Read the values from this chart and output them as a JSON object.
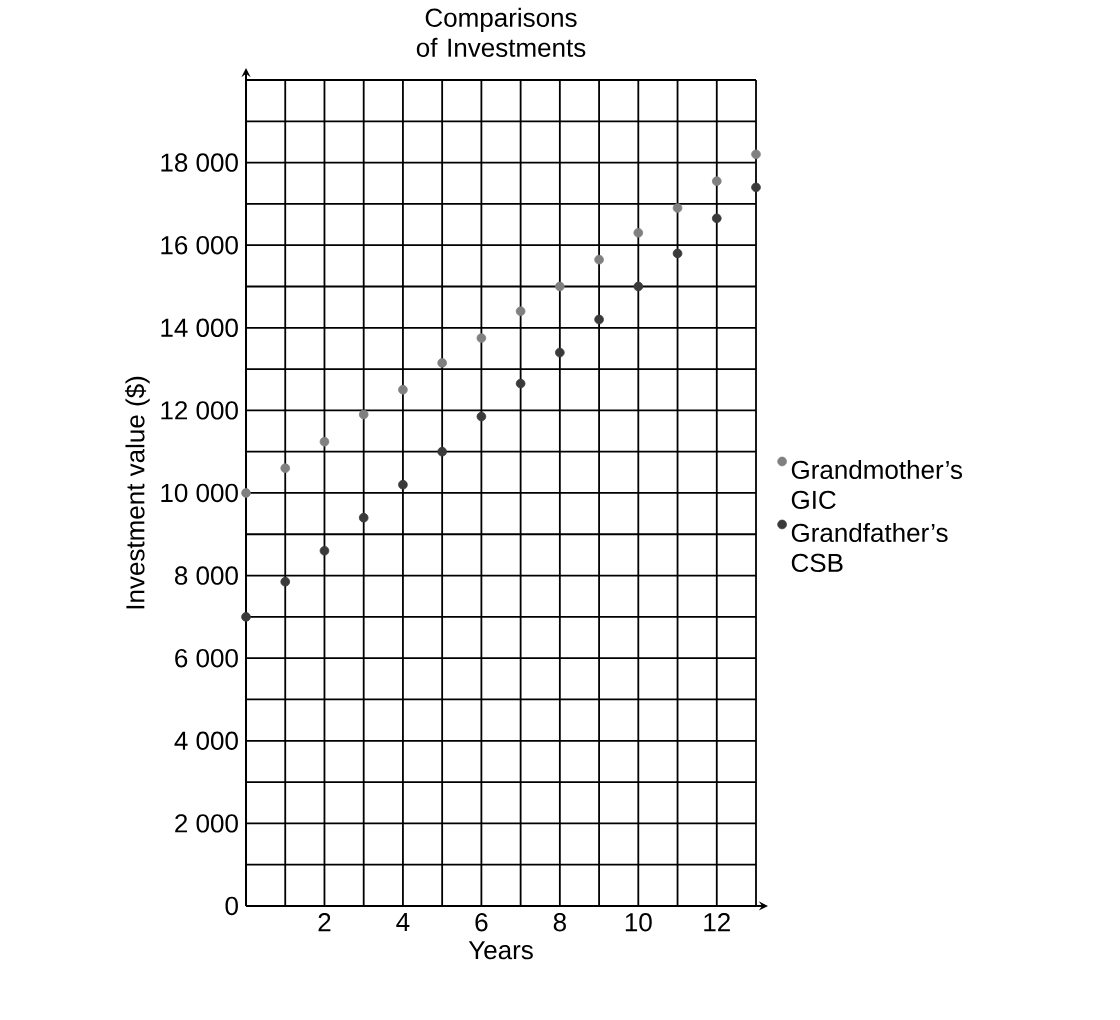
{
  "chart_data": {
    "type": "scatter",
    "title": "Comparisons of Investments",
    "xlabel": "Years",
    "ylabel": "Investment value ($)",
    "x": [
      0,
      1,
      2,
      3,
      4,
      5,
      6,
      7,
      8,
      9,
      10,
      11,
      12,
      13
    ],
    "series": [
      {
        "name": "Grandmother’s GIC",
        "color": "#808080",
        "values": [
          10000,
          10600,
          11240,
          11900,
          12500,
          13150,
          13750,
          14400,
          15000,
          15650,
          16300,
          16900,
          17550,
          18200
        ]
      },
      {
        "name": "Grandfather’s CSB",
        "color": "#3a3a3a",
        "values": [
          7000,
          7850,
          8600,
          9400,
          10200,
          11000,
          11850,
          12650,
          13400,
          14200,
          15000,
          15800,
          16650,
          17400
        ]
      }
    ],
    "xlim": [
      0,
      13
    ],
    "ylim": [
      0,
      20000
    ],
    "xticks": [
      {
        "value": 0,
        "label": null
      },
      {
        "value": 1,
        "label": null
      },
      2,
      {
        "value": 3,
        "label": null
      },
      4,
      {
        "value": 5,
        "label": null
      },
      6,
      {
        "value": 7,
        "label": null
      },
      8,
      {
        "value": 9,
        "label": null
      },
      10,
      {
        "value": 11,
        "label": null
      },
      12,
      {
        "value": 13,
        "label": null
      }
    ],
    "yticks": [
      0,
      {
        "value": 1000,
        "label": null
      },
      {
        "value": 2000,
        "label": "2 000"
      },
      {
        "value": 3000,
        "label": null
      },
      {
        "value": 4000,
        "label": "4 000"
      },
      {
        "value": 5000,
        "label": null
      },
      {
        "value": 6000,
        "label": "6 000"
      },
      {
        "value": 7000,
        "label": null
      },
      {
        "value": 8000,
        "label": "8 000"
      },
      {
        "value": 9000,
        "label": null
      },
      {
        "value": 10000,
        "label": "10 000"
      },
      {
        "value": 11000,
        "label": null
      },
      {
        "value": 12000,
        "label": "12 000"
      },
      {
        "value": 13000,
        "label": null
      },
      {
        "value": 14000,
        "label": "14 000"
      },
      {
        "value": 15000,
        "label": null
      },
      {
        "value": 16000,
        "label": "16 000"
      },
      {
        "value": 17000,
        "label": null
      },
      {
        "value": 18000,
        "label": "18 000"
      },
      {
        "value": 19000,
        "label": null
      },
      {
        "value": 20000,
        "label": null
      }
    ],
    "grid": true,
    "legend": "right",
    "marker": "circle"
  }
}
